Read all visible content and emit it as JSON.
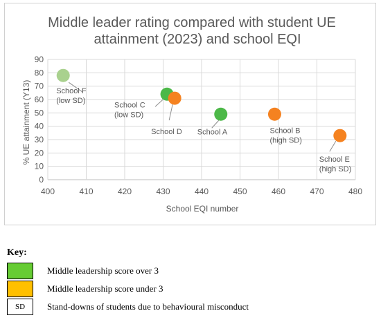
{
  "chart_data": {
    "type": "scatter",
    "title_lines": [
      "Middle leader rating compared with student UE",
      "attainment (2023) and school EQI"
    ],
    "xlabel": "School  EQI number",
    "ylabel": "% UE attainment (Y13)",
    "xlim": [
      400,
      480
    ],
    "ylim": [
      0,
      90
    ],
    "xticks": [
      "400",
      "410",
      "420",
      "430",
      "440",
      "450",
      "460",
      "470",
      "480"
    ],
    "yticks": [
      "0",
      "10",
      "20",
      "30",
      "40",
      "50",
      "60",
      "70",
      "80",
      "90"
    ],
    "grid": true,
    "points": [
      {
        "label_lines": [
          "School F",
          "(low SD)"
        ],
        "x": 404,
        "y": 78,
        "color": "#a9d18e"
      },
      {
        "label_lines": [
          "School C",
          "(low SD)"
        ],
        "x": 431,
        "y": 64,
        "color": "#4cb848"
      },
      {
        "label_lines": [
          "School D"
        ],
        "x": 433,
        "y": 61,
        "color": "#f58220"
      },
      {
        "label_lines": [
          "School A"
        ],
        "x": 445,
        "y": 49,
        "color": "#4cb848"
      },
      {
        "label_lines": [
          "School B",
          "(high SD)"
        ],
        "x": 459,
        "y": 49,
        "color": "#f58220"
      },
      {
        "label_lines": [
          "School E",
          "(high SD)"
        ],
        "x": 476,
        "y": 33,
        "color": "#f58220"
      }
    ]
  },
  "key": {
    "heading": "Key:",
    "items": [
      {
        "swatch_color": "#66cc33",
        "swatch_text": "",
        "text": "Middle leadership score over 3"
      },
      {
        "swatch_color": "#ffc000",
        "swatch_text": "",
        "text": "Middle leadership score under 3"
      },
      {
        "swatch_color": "#ffffff",
        "swatch_text": "SD",
        "text": "Stand-downs of students due to behavioural misconduct"
      }
    ]
  }
}
